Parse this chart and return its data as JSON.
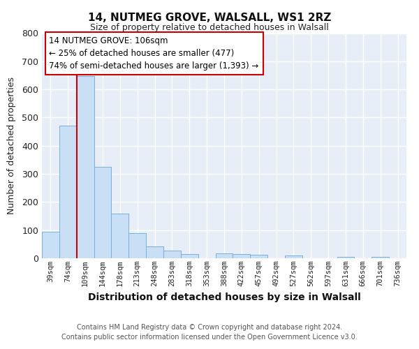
{
  "title": "14, NUTMEG GROVE, WALSALL, WS1 2RZ",
  "subtitle": "Size of property relative to detached houses in Walsall",
  "xlabel": "Distribution of detached houses by size in Walsall",
  "ylabel": "Number of detached properties",
  "bar_labels": [
    "39sqm",
    "74sqm",
    "109sqm",
    "144sqm",
    "178sqm",
    "213sqm",
    "248sqm",
    "283sqm",
    "318sqm",
    "353sqm",
    "388sqm",
    "422sqm",
    "457sqm",
    "492sqm",
    "527sqm",
    "562sqm",
    "597sqm",
    "631sqm",
    "666sqm",
    "701sqm",
    "736sqm"
  ],
  "bar_values": [
    95,
    472,
    648,
    325,
    160,
    90,
    42,
    28,
    14,
    0,
    18,
    15,
    13,
    0,
    10,
    0,
    0,
    6,
    0,
    5,
    0
  ],
  "bar_color": "#c9dff5",
  "bar_edge_color": "#7ab0d8",
  "vline_x": 2.0,
  "vline_color": "#cc0000",
  "ylim": [
    0,
    800
  ],
  "yticks": [
    0,
    100,
    200,
    300,
    400,
    500,
    600,
    700,
    800
  ],
  "annotation_line1": "14 NUTMEG GROVE: 106sqm",
  "annotation_line2": "← 25% of detached houses are smaller (477)",
  "annotation_line3": "74% of semi-detached houses are larger (1,393) →",
  "annotation_box_color": "white",
  "annotation_box_edge": "#cc0000",
  "footer_line1": "Contains HM Land Registry data © Crown copyright and database right 2024.",
  "footer_line2": "Contains public sector information licensed under the Open Government Licence v3.0.",
  "background_color": "#ffffff",
  "plot_bg_color": "#e8eef7",
  "grid_color": "#ffffff",
  "title_fontsize": 11,
  "subtitle_fontsize": 9
}
